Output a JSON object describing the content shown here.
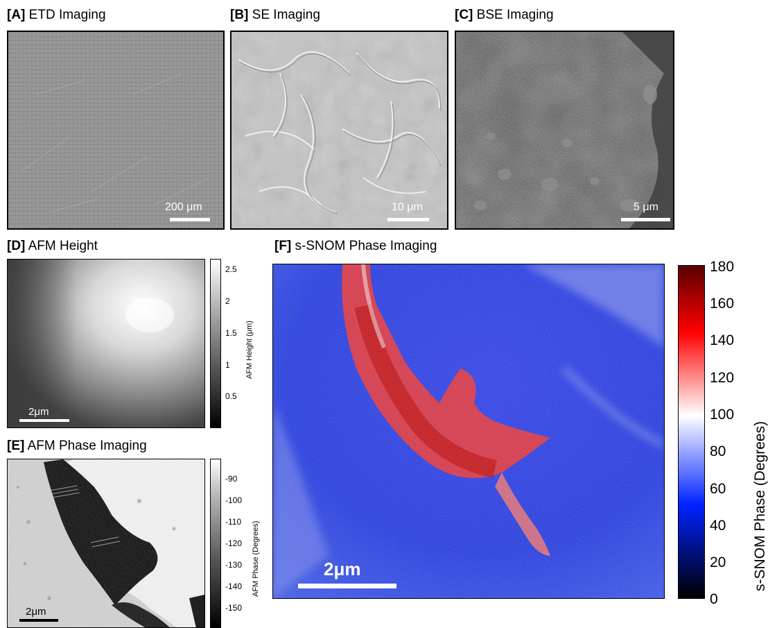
{
  "panels": {
    "a": {
      "letter": "[A]",
      "title": "ETD Imaging",
      "scalebar": "200 μm"
    },
    "b": {
      "letter": "[B]",
      "title": "SE Imaging",
      "scalebar": "10 μm"
    },
    "c": {
      "letter": "[C]",
      "title": "BSE Imaging",
      "scalebar": "5 μm"
    },
    "d": {
      "letter": "[D]",
      "title": "AFM Height",
      "scalebar": "2μm",
      "colorbar_label": "AFM Height (μm)",
      "colorbar_ticks": [
        "2.5",
        "2",
        "1.5",
        "1",
        "0.5"
      ]
    },
    "e": {
      "letter": "[E]",
      "title": "AFM Phase Imaging",
      "scalebar": "2μm",
      "colorbar_label": "AFM Phase (Degrees)",
      "colorbar_ticks": [
        "-90",
        "-100",
        "-110",
        "-120",
        "-130",
        "-140",
        "-150"
      ]
    },
    "f": {
      "letter": "[F]",
      "title": "s-SNOM Phase Imaging",
      "scalebar": "2μm",
      "colorbar_label": "s-SNOM Phase (Degrees)",
      "colorbar_ticks": [
        "180",
        "160",
        "140",
        "120",
        "100",
        "80",
        "60",
        "40",
        "20",
        "0"
      ]
    }
  },
  "colors": {
    "snom_low": "#000000",
    "snom_blue": "#0022ff",
    "snom_mid": "#ffffff",
    "snom_red": "#ff0000",
    "snom_high": "#5a0000"
  }
}
